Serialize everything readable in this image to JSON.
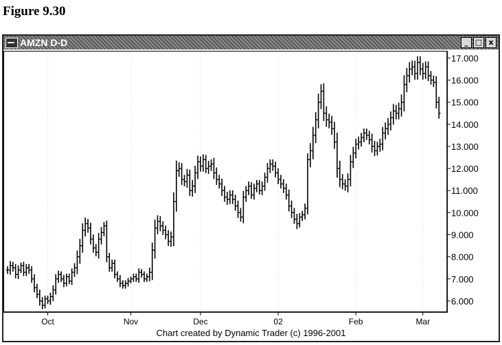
{
  "figure_title": "Figure 9.30",
  "window": {
    "title": "AMZN D-D",
    "buttons": [
      "_",
      "□",
      "x"
    ]
  },
  "credit": "Chart created by Dynamic Trader (c) 1996-2001",
  "chart_data": {
    "type": "bar",
    "style": "ohlc",
    "ylim": [
      5.5,
      17.2
    ],
    "yticks": [
      "6.000",
      "7.000",
      "8.000",
      "9.000",
      "10.000",
      "11.000",
      "12.000",
      "13.000",
      "14.000",
      "15.000",
      "16.000",
      "17.000"
    ],
    "x_labels": [
      {
        "label": "Oct",
        "index": 15
      },
      {
        "label": "Nov",
        "index": 46
      },
      {
        "label": "Dec",
        "index": 72
      },
      {
        "label": "02",
        "index": 101
      },
      {
        "label": "Feb",
        "index": 130
      },
      {
        "label": "Mar",
        "index": 155
      }
    ],
    "num_bars": 164,
    "closes": [
      7.4,
      7.6,
      7.5,
      7.2,
      7.4,
      7.6,
      7.3,
      7.5,
      7.4,
      7.0,
      6.6,
      6.3,
      6.0,
      5.8,
      6.1,
      6.0,
      6.2,
      6.5,
      7.0,
      7.2,
      7.0,
      6.8,
      7.1,
      6.9,
      7.3,
      7.5,
      8.0,
      8.5,
      9.2,
      9.5,
      9.3,
      8.8,
      8.4,
      8.2,
      8.8,
      9.1,
      9.4,
      8.0,
      7.5,
      7.7,
      7.2,
      7.0,
      6.8,
      6.7,
      6.8,
      6.9,
      7.0,
      7.1,
      7.0,
      7.3,
      7.2,
      7.0,
      7.1,
      7.3,
      8.3,
      9.3,
      9.6,
      9.4,
      9.2,
      9.0,
      8.7,
      8.9,
      10.5,
      11.9,
      12.0,
      11.5,
      11.4,
      11.7,
      11.0,
      11.2,
      11.8,
      12.3,
      12.1,
      12.4,
      12.0,
      12.1,
      12.2,
      11.8,
      11.5,
      11.3,
      11.0,
      10.7,
      10.6,
      10.8,
      10.6,
      10.3,
      10.0,
      9.8,
      10.7,
      11.0,
      11.2,
      10.8,
      11.1,
      11.3,
      11.0,
      11.2,
      11.6,
      12.0,
      12.2,
      12.1,
      11.8,
      11.5,
      11.3,
      11.1,
      10.8,
      10.3,
      10.0,
      9.7,
      9.5,
      9.8,
      9.9,
      10.2,
      12.4,
      12.8,
      13.5,
      14.2,
      15.0,
      15.5,
      14.5,
      14.2,
      14.1,
      13.8,
      13.2,
      12.0,
      11.5,
      11.3,
      11.2,
      11.5,
      12.3,
      12.7,
      13.1,
      13.2,
      13.4,
      13.6,
      13.5,
      13.3,
      13.0,
      12.8,
      13.0,
      13.1,
      13.6,
      13.8,
      14.0,
      14.3,
      14.6,
      14.5,
      14.7,
      15.0,
      15.8,
      16.2,
      16.5,
      16.6,
      16.3,
      16.8,
      16.5,
      16.3,
      16.6,
      16.2,
      16.0,
      15.9,
      15.0,
      14.5
    ],
    "ranges": [
      0.5,
      0.6,
      0.5,
      0.5,
      0.6,
      0.4,
      0.5,
      0.5,
      0.5,
      0.5,
      0.6,
      0.5,
      0.6,
      0.5,
      0.4,
      0.4,
      0.5,
      0.6,
      0.6,
      0.5,
      0.4,
      0.5,
      0.4,
      0.4,
      0.5,
      0.6,
      0.8,
      0.9,
      0.9,
      0.8,
      0.6,
      0.7,
      0.6,
      0.5,
      0.8,
      0.7,
      0.5,
      0.7,
      0.5,
      0.5,
      0.5,
      0.4,
      0.5,
      0.4,
      0.4,
      0.4,
      0.3,
      0.4,
      0.4,
      0.5,
      0.4,
      0.4,
      0.4,
      0.6,
      1.0,
      1.1,
      0.8,
      0.7,
      0.6,
      0.6,
      0.6,
      0.7,
      1.2,
      1.3,
      0.8,
      0.7,
      0.6,
      0.8,
      0.7,
      0.8,
      0.9,
      0.8,
      0.7,
      0.7,
      0.6,
      0.7,
      0.6,
      0.8,
      0.7,
      0.6,
      0.7,
      0.6,
      0.7,
      0.6,
      0.6,
      0.6,
      0.7,
      0.6,
      0.8,
      0.6,
      0.6,
      0.5,
      0.6,
      0.5,
      0.5,
      0.6,
      0.6,
      0.7,
      0.6,
      0.6,
      0.6,
      0.6,
      0.6,
      0.6,
      0.6,
      0.7,
      0.7,
      0.6,
      0.7,
      0.5,
      0.5,
      0.6,
      0.8,
      1.0,
      1.1,
      1.0,
      1.1,
      0.9,
      1.0,
      0.9,
      0.8,
      0.8,
      0.9,
      1.2,
      1.0,
      0.7,
      0.6,
      0.8,
      0.9,
      0.8,
      0.7,
      0.7,
      0.6,
      0.6,
      0.6,
      0.6,
      0.8,
      0.7,
      0.6,
      0.7,
      0.8,
      0.8,
      0.8,
      0.8,
      0.9,
      0.8,
      0.8,
      1.0,
      1.2,
      1.0,
      0.9,
      0.8,
      0.8,
      0.8,
      0.8,
      0.8,
      0.7,
      0.7,
      0.6,
      0.6,
      0.8,
      0.7
    ]
  }
}
